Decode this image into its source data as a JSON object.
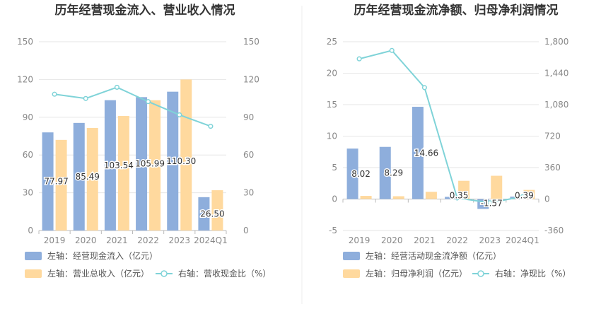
{
  "charts": [
    {
      "title": "历年经营现金流入、营业收入情况",
      "chart_data": {
        "type": "bar",
        "categories": [
          "2019",
          "2020",
          "2021",
          "2022",
          "2023",
          "2024Q1"
        ],
        "left_axis": {
          "ticks": [
            "0",
            "30",
            "60",
            "90",
            "120",
            "150"
          ],
          "ylim": [
            0,
            150
          ]
        },
        "right_axis": {
          "ticks": [
            "0",
            "30",
            "60",
            "90",
            "120",
            "150"
          ],
          "ylim": [
            0,
            150
          ]
        },
        "series": [
          {
            "name": "左轴：经营现金流入（亿元）",
            "kind": "bar",
            "axis": "left",
            "color": "#8EAEDC",
            "values": [
              77.97,
              85.49,
              103.54,
              105.99,
              110.3,
              26.5
            ],
            "labels": [
              "77.97",
              "85.49",
              "103.54",
              "105.99",
              "110.30",
              "26.50"
            ]
          },
          {
            "name": "左轴：营业总收入（亿元）",
            "kind": "bar",
            "axis": "left",
            "color": "#FFD99E",
            "values": [
              72.0,
              81.5,
              91.0,
              103.5,
              120.0,
              32.0
            ]
          },
          {
            "name": "右轴：营收现金比（%）",
            "kind": "line",
            "axis": "right",
            "color": "#7FD3D8",
            "values": [
              108.3,
              104.9,
              113.8,
              102.4,
              91.9,
              82.8
            ]
          }
        ],
        "grid": true,
        "legend_position": "bottom-left"
      }
    },
    {
      "title": "历年经营现金流净额、归母净利润情况",
      "chart_data": {
        "type": "bar",
        "categories": [
          "2019",
          "2020",
          "2021",
          "2022",
          "2023",
          "2024Q1"
        ],
        "left_axis": {
          "ticks": [
            "-5",
            "0",
            "5",
            "10",
            "15",
            "20",
            "25"
          ],
          "ylim": [
            -5,
            25
          ]
        },
        "right_axis": {
          "ticks": [
            "-360",
            "0",
            "360",
            "720",
            "1,080",
            "1,440",
            "1,800"
          ],
          "ylim": [
            -360,
            1800
          ]
        },
        "series": [
          {
            "name": "左轴：经营活动现金流净额（亿元）",
            "kind": "bar",
            "axis": "left",
            "color": "#8EAEDC",
            "values": [
              8.02,
              8.29,
              14.66,
              0.35,
              -1.57,
              0.39
            ],
            "labels": [
              "8.02",
              "8.29",
              "14.66",
              "0.35",
              "-1.57",
              "0.39"
            ]
          },
          {
            "name": "左轴：归母净利润（亿元）",
            "kind": "bar",
            "axis": "left",
            "color": "#FFD99E",
            "values": [
              0.5,
              0.45,
              1.15,
              2.9,
              3.7,
              1.45
            ]
          },
          {
            "name": "右轴：净现比（%）",
            "kind": "line",
            "axis": "right",
            "color": "#7FD3D8",
            "values": [
              1604,
              1700,
              1275,
              12,
              -42,
              27
            ]
          }
        ],
        "grid": true,
        "legend_position": "bottom-left"
      }
    }
  ]
}
